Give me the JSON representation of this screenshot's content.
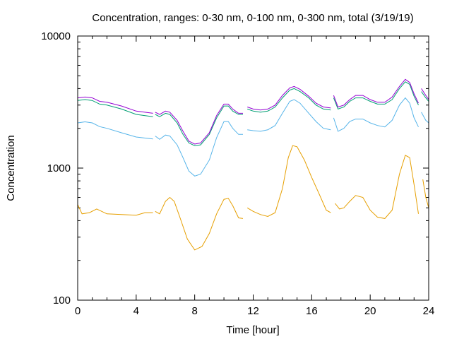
{
  "chart_data": {
    "type": "line",
    "title": "Concentration, ranges: 0-30 nm, 0-100 nm, 0-300 nm, total (3/19/19)",
    "xlabel": "Time [hour]",
    "ylabel": "Concentration",
    "xlim": [
      0,
      24
    ],
    "ylim": [
      100,
      10000
    ],
    "yscale": "log",
    "grid": false,
    "x_ticks": [
      0,
      4,
      8,
      12,
      16,
      20,
      24
    ],
    "y_ticks": [
      100,
      1000,
      10000
    ],
    "series": [
      {
        "color": "#e69f00",
        "segments": [
          [
            [
              0,
              530
            ],
            [
              0.3,
              450
            ],
            [
              0.8,
              460
            ],
            [
              1.3,
              490
            ],
            [
              2,
              450
            ],
            [
              3,
              445
            ],
            [
              4,
              440
            ],
            [
              4.6,
              460
            ],
            [
              5.15,
              460
            ]
          ],
          [
            [
              5.3,
              470
            ],
            [
              5.6,
              450
            ],
            [
              6.0,
              560
            ],
            [
              6.3,
              600
            ],
            [
              6.6,
              560
            ],
            [
              7.0,
              420
            ],
            [
              7.5,
              290
            ],
            [
              8.0,
              240
            ],
            [
              8.5,
              255
            ],
            [
              9.0,
              320
            ],
            [
              9.5,
              450
            ],
            [
              10.0,
              580
            ],
            [
              10.3,
              590
            ],
            [
              10.6,
              520
            ],
            [
              11.0,
              420
            ],
            [
              11.3,
              415
            ]
          ],
          [
            [
              11.6,
              500
            ],
            [
              12.0,
              470
            ],
            [
              12.5,
              445
            ],
            [
              13.0,
              430
            ],
            [
              13.5,
              460
            ],
            [
              14.0,
              700
            ],
            [
              14.4,
              1200
            ],
            [
              14.7,
              1480
            ],
            [
              15.0,
              1450
            ],
            [
              15.5,
              1150
            ],
            [
              16.0,
              850
            ],
            [
              16.5,
              640
            ],
            [
              17.0,
              480
            ],
            [
              17.3,
              460
            ]
          ],
          [
            [
              17.6,
              540
            ],
            [
              17.9,
              490
            ],
            [
              18.2,
              500
            ],
            [
              18.6,
              560
            ],
            [
              19.0,
              620
            ],
            [
              19.5,
              600
            ],
            [
              20.0,
              480
            ],
            [
              20.5,
              425
            ],
            [
              21.0,
              415
            ],
            [
              21.5,
              480
            ],
            [
              22.0,
              900
            ],
            [
              22.4,
              1250
            ],
            [
              22.7,
              1200
            ],
            [
              23.0,
              750
            ],
            [
              23.3,
              450
            ]
          ],
          [
            [
              23.6,
              820
            ],
            [
              23.8,
              600
            ],
            [
              24.0,
              500
            ]
          ]
        ]
      },
      {
        "color": "#56b4e9",
        "segments": [
          [
            [
              0,
              2200
            ],
            [
              0.5,
              2240
            ],
            [
              1.0,
              2200
            ],
            [
              1.5,
              2060
            ],
            [
              2,
              2000
            ],
            [
              3,
              1850
            ],
            [
              4,
              1720
            ],
            [
              5.15,
              1660
            ]
          ],
          [
            [
              5.3,
              1750
            ],
            [
              5.6,
              1650
            ],
            [
              6.0,
              1780
            ],
            [
              6.3,
              1750
            ],
            [
              6.8,
              1500
            ],
            [
              7.2,
              1200
            ],
            [
              7.6,
              950
            ],
            [
              8.0,
              870
            ],
            [
              8.4,
              900
            ],
            [
              9.0,
              1150
            ],
            [
              9.5,
              1700
            ],
            [
              10.0,
              2250
            ],
            [
              10.3,
              2250
            ],
            [
              10.6,
              2000
            ],
            [
              11.0,
              1800
            ],
            [
              11.3,
              1800
            ]
          ],
          [
            [
              11.6,
              1950
            ],
            [
              12.0,
              1920
            ],
            [
              12.5,
              1900
            ],
            [
              13.0,
              1950
            ],
            [
              13.5,
              2100
            ],
            [
              14.0,
              2600
            ],
            [
              14.5,
              3200
            ],
            [
              14.8,
              3300
            ],
            [
              15.2,
              3100
            ],
            [
              15.8,
              2600
            ],
            [
              16.3,
              2250
            ],
            [
              16.8,
              2000
            ],
            [
              17.3,
              1950
            ]
          ],
          [
            [
              17.5,
              2400
            ],
            [
              17.8,
              1900
            ],
            [
              18.2,
              2000
            ],
            [
              18.6,
              2250
            ],
            [
              19.0,
              2350
            ],
            [
              19.5,
              2350
            ],
            [
              20.0,
              2200
            ],
            [
              20.5,
              2100
            ],
            [
              21.0,
              2050
            ],
            [
              21.5,
              2300
            ],
            [
              22.0,
              3000
            ],
            [
              22.4,
              3400
            ],
            [
              22.7,
              3100
            ],
            [
              23.0,
              2400
            ],
            [
              23.3,
              2050
            ]
          ],
          [
            [
              23.5,
              2650
            ],
            [
              23.8,
              2300
            ],
            [
              24.0,
              2200
            ]
          ]
        ]
      },
      {
        "color": "#009e73",
        "segments": [
          [
            [
              0,
              3250
            ],
            [
              0.5,
              3300
            ],
            [
              1.0,
              3250
            ],
            [
              1.5,
              3050
            ],
            [
              2,
              3000
            ],
            [
              3,
              2800
            ],
            [
              4,
              2550
            ],
            [
              5.15,
              2450
            ]
          ],
          [
            [
              5.3,
              2550
            ],
            [
              5.6,
              2450
            ],
            [
              6.0,
              2600
            ],
            [
              6.3,
              2550
            ],
            [
              6.8,
              2200
            ],
            [
              7.2,
              1800
            ],
            [
              7.6,
              1550
            ],
            [
              8.0,
              1480
            ],
            [
              8.4,
              1500
            ],
            [
              9.0,
              1800
            ],
            [
              9.5,
              2400
            ],
            [
              10.0,
              2950
            ],
            [
              10.3,
              2950
            ],
            [
              10.6,
              2700
            ],
            [
              11.0,
              2550
            ],
            [
              11.3,
              2550
            ]
          ],
          [
            [
              11.6,
              2800
            ],
            [
              12.0,
              2700
            ],
            [
              12.5,
              2650
            ],
            [
              13.0,
              2700
            ],
            [
              13.5,
              2900
            ],
            [
              14.0,
              3400
            ],
            [
              14.5,
              3900
            ],
            [
              14.8,
              4000
            ],
            [
              15.2,
              3800
            ],
            [
              15.8,
              3400
            ],
            [
              16.3,
              3000
            ],
            [
              16.8,
              2800
            ],
            [
              17.3,
              2750
            ]
          ],
          [
            [
              17.5,
              3400
            ],
            [
              17.8,
              2800
            ],
            [
              18.2,
              2900
            ],
            [
              18.6,
              3200
            ],
            [
              19.0,
              3400
            ],
            [
              19.5,
              3400
            ],
            [
              20.0,
              3200
            ],
            [
              20.5,
              3050
            ],
            [
              21.0,
              3050
            ],
            [
              21.5,
              3300
            ],
            [
              22.0,
              4000
            ],
            [
              22.4,
              4500
            ],
            [
              22.7,
              4300
            ],
            [
              23.0,
              3500
            ],
            [
              23.3,
              3000
            ]
          ],
          [
            [
              23.5,
              3800
            ],
            [
              23.8,
              3400
            ],
            [
              24.0,
              3200
            ]
          ]
        ]
      },
      {
        "color": "#9400d3",
        "segments": [
          [
            [
              0,
              3400
            ],
            [
              0.5,
              3450
            ],
            [
              1.0,
              3400
            ],
            [
              1.5,
              3200
            ],
            [
              2,
              3150
            ],
            [
              3,
              2950
            ],
            [
              4,
              2700
            ],
            [
              5.15,
              2600
            ]
          ],
          [
            [
              5.3,
              2650
            ],
            [
              5.6,
              2550
            ],
            [
              6.0,
              2700
            ],
            [
              6.3,
              2650
            ],
            [
              6.8,
              2300
            ],
            [
              7.2,
              1900
            ],
            [
              7.6,
              1600
            ],
            [
              8.0,
              1520
            ],
            [
              8.4,
              1550
            ],
            [
              9.0,
              1850
            ],
            [
              9.5,
              2500
            ],
            [
              10.0,
              3050
            ],
            [
              10.3,
              3050
            ],
            [
              10.6,
              2800
            ],
            [
              11.0,
              2600
            ],
            [
              11.3,
              2600
            ]
          ],
          [
            [
              11.6,
              2900
            ],
            [
              12.0,
              2800
            ],
            [
              12.5,
              2750
            ],
            [
              13.0,
              2800
            ],
            [
              13.5,
              3000
            ],
            [
              14.0,
              3550
            ],
            [
              14.5,
              4050
            ],
            [
              14.8,
              4150
            ],
            [
              15.2,
              3950
            ],
            [
              15.8,
              3500
            ],
            [
              16.3,
              3100
            ],
            [
              16.8,
              2900
            ],
            [
              17.3,
              2850
            ]
          ],
          [
            [
              17.5,
              3550
            ],
            [
              17.8,
              2900
            ],
            [
              18.2,
              3000
            ],
            [
              18.6,
              3300
            ],
            [
              19.0,
              3550
            ],
            [
              19.5,
              3550
            ],
            [
              20.0,
              3300
            ],
            [
              20.5,
              3150
            ],
            [
              21.0,
              3150
            ],
            [
              21.5,
              3450
            ],
            [
              22.0,
              4150
            ],
            [
              22.4,
              4700
            ],
            [
              22.7,
              4450
            ],
            [
              23.0,
              3650
            ],
            [
              23.3,
              3100
            ]
          ],
          [
            [
              23.5,
              4000
            ],
            [
              23.8,
              3550
            ],
            [
              24.0,
              3300
            ]
          ]
        ]
      }
    ]
  }
}
